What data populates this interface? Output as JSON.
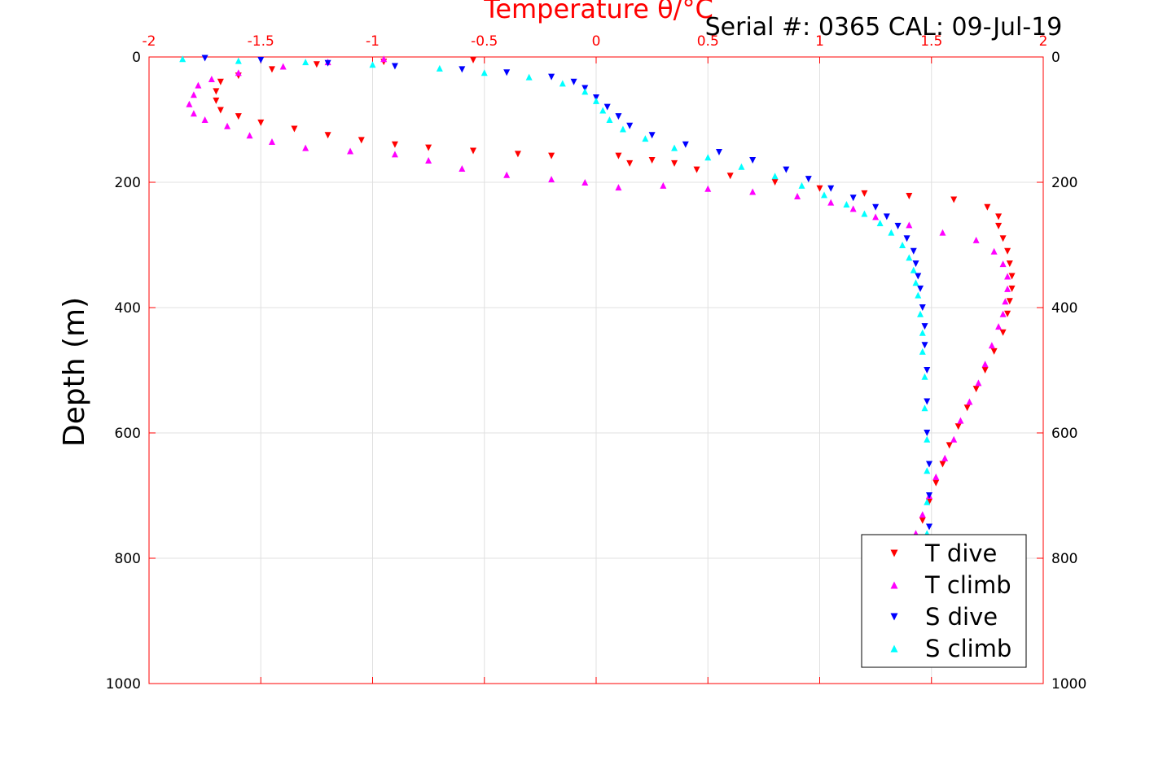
{
  "chart_data": {
    "type": "scatter",
    "title": "Temperature θ/°C",
    "subtitle": "Serial #: 0365  CAL: 09-Jul-19",
    "xlabel": "Temperature θ/°C",
    "ylabel": "Depth (m)",
    "xlim": [
      -2,
      2
    ],
    "ylim": [
      0,
      1000
    ],
    "y_reversed": true,
    "x_axis_position": "top",
    "grid": true,
    "legend_position": "bottom-right",
    "x_ticks": [
      "-2",
      "-1.5",
      "-1",
      "-0.5",
      "0",
      "0.5",
      "1",
      "1.5",
      "2"
    ],
    "y_ticks": [
      "0",
      "200",
      "400",
      "600",
      "800",
      "1000"
    ],
    "colors": {
      "axis": "#ff0000",
      "grid": "#e0e0e0",
      "t_dive": "#ff0000",
      "t_climb": "#ff00ff",
      "s_dive": "#0000ff",
      "s_climb": "#00ffff"
    },
    "series": [
      {
        "name": "T dive",
        "color": "#ff0000",
        "marker": "triangle-down",
        "points": [
          [
            -0.55,
            5
          ],
          [
            -0.95,
            8
          ],
          [
            -1.25,
            12
          ],
          [
            -1.45,
            20
          ],
          [
            -1.6,
            30
          ],
          [
            -1.68,
            40
          ],
          [
            -1.7,
            55
          ],
          [
            -1.7,
            70
          ],
          [
            -1.68,
            85
          ],
          [
            -1.6,
            95
          ],
          [
            -1.5,
            105
          ],
          [
            -1.35,
            115
          ],
          [
            -1.2,
            125
          ],
          [
            -1.05,
            133
          ],
          [
            -0.9,
            140
          ],
          [
            -0.75,
            145
          ],
          [
            -0.55,
            150
          ],
          [
            -0.35,
            155
          ],
          [
            -0.2,
            158
          ],
          [
            0.1,
            158
          ],
          [
            0.15,
            170
          ],
          [
            0.25,
            165
          ],
          [
            0.35,
            170
          ],
          [
            0.45,
            180
          ],
          [
            0.6,
            190
          ],
          [
            0.8,
            200
          ],
          [
            1.0,
            210
          ],
          [
            1.2,
            218
          ],
          [
            1.4,
            222
          ],
          [
            1.6,
            228
          ],
          [
            1.75,
            240
          ],
          [
            1.8,
            255
          ],
          [
            1.8,
            270
          ],
          [
            1.82,
            290
          ],
          [
            1.84,
            310
          ],
          [
            1.85,
            330
          ],
          [
            1.86,
            350
          ],
          [
            1.86,
            370
          ],
          [
            1.85,
            390
          ],
          [
            1.84,
            410
          ],
          [
            1.82,
            440
          ],
          [
            1.78,
            470
          ],
          [
            1.74,
            500
          ],
          [
            1.7,
            530
          ],
          [
            1.66,
            560
          ],
          [
            1.62,
            590
          ],
          [
            1.58,
            620
          ],
          [
            1.55,
            650
          ],
          [
            1.52,
            680
          ],
          [
            1.49,
            710
          ],
          [
            1.46,
            740
          ],
          [
            1.43,
            770
          ]
        ]
      },
      {
        "name": "T climb",
        "color": "#ff00ff",
        "marker": "triangle-up",
        "points": [
          [
            -0.95,
            3
          ],
          [
            -1.2,
            8
          ],
          [
            -1.4,
            15
          ],
          [
            -1.6,
            25
          ],
          [
            -1.72,
            35
          ],
          [
            -1.78,
            45
          ],
          [
            -1.8,
            60
          ],
          [
            -1.82,
            75
          ],
          [
            -1.8,
            90
          ],
          [
            -1.75,
            100
          ],
          [
            -1.65,
            110
          ],
          [
            -1.55,
            125
          ],
          [
            -1.45,
            135
          ],
          [
            -1.3,
            145
          ],
          [
            -1.1,
            150
          ],
          [
            -0.9,
            155
          ],
          [
            -0.75,
            165
          ],
          [
            -0.6,
            178
          ],
          [
            -0.4,
            188
          ],
          [
            -0.2,
            195
          ],
          [
            -0.05,
            200
          ],
          [
            0.1,
            208
          ],
          [
            0.3,
            205
          ],
          [
            0.5,
            210
          ],
          [
            0.7,
            215
          ],
          [
            0.9,
            222
          ],
          [
            1.05,
            232
          ],
          [
            1.15,
            242
          ],
          [
            1.25,
            255
          ],
          [
            1.4,
            268
          ],
          [
            1.55,
            280
          ],
          [
            1.7,
            292
          ],
          [
            1.78,
            310
          ],
          [
            1.82,
            330
          ],
          [
            1.84,
            350
          ],
          [
            1.84,
            370
          ],
          [
            1.83,
            390
          ],
          [
            1.82,
            410
          ],
          [
            1.8,
            430
          ],
          [
            1.77,
            460
          ],
          [
            1.74,
            490
          ],
          [
            1.71,
            520
          ],
          [
            1.67,
            550
          ],
          [
            1.63,
            580
          ],
          [
            1.6,
            610
          ],
          [
            1.56,
            640
          ],
          [
            1.52,
            670
          ],
          [
            1.49,
            700
          ],
          [
            1.46,
            730
          ],
          [
            1.43,
            760
          ],
          [
            1.41,
            775
          ]
        ]
      },
      {
        "name": "S dive",
        "color": "#0000ff",
        "marker": "triangle-down",
        "points": [
          [
            -1.75,
            2
          ],
          [
            -1.5,
            5
          ],
          [
            -1.2,
            10
          ],
          [
            -0.9,
            15
          ],
          [
            -0.6,
            20
          ],
          [
            -0.4,
            25
          ],
          [
            -0.2,
            32
          ],
          [
            -0.1,
            40
          ],
          [
            -0.05,
            50
          ],
          [
            0.0,
            65
          ],
          [
            0.05,
            80
          ],
          [
            0.1,
            95
          ],
          [
            0.15,
            110
          ],
          [
            0.25,
            125
          ],
          [
            0.4,
            140
          ],
          [
            0.55,
            152
          ],
          [
            0.7,
            165
          ],
          [
            0.85,
            180
          ],
          [
            0.95,
            195
          ],
          [
            1.05,
            210
          ],
          [
            1.15,
            225
          ],
          [
            1.25,
            240
          ],
          [
            1.3,
            255
          ],
          [
            1.35,
            270
          ],
          [
            1.39,
            290
          ],
          [
            1.42,
            310
          ],
          [
            1.43,
            330
          ],
          [
            1.44,
            350
          ],
          [
            1.45,
            370
          ],
          [
            1.46,
            400
          ],
          [
            1.47,
            430
          ],
          [
            1.47,
            460
          ],
          [
            1.48,
            500
          ],
          [
            1.48,
            550
          ],
          [
            1.48,
            600
          ],
          [
            1.49,
            650
          ],
          [
            1.49,
            700
          ],
          [
            1.49,
            750
          ],
          [
            1.49,
            775
          ]
        ]
      },
      {
        "name": "S climb",
        "color": "#00ffff",
        "marker": "triangle-up",
        "points": [
          [
            -1.85,
            3
          ],
          [
            -1.6,
            6
          ],
          [
            -1.3,
            8
          ],
          [
            -1.0,
            12
          ],
          [
            -0.7,
            18
          ],
          [
            -0.5,
            25
          ],
          [
            -0.3,
            32
          ],
          [
            -0.15,
            42
          ],
          [
            -0.05,
            55
          ],
          [
            0.0,
            70
          ],
          [
            0.03,
            85
          ],
          [
            0.06,
            100
          ],
          [
            0.12,
            115
          ],
          [
            0.22,
            130
          ],
          [
            0.35,
            145
          ],
          [
            0.5,
            160
          ],
          [
            0.65,
            175
          ],
          [
            0.8,
            190
          ],
          [
            0.92,
            205
          ],
          [
            1.02,
            220
          ],
          [
            1.12,
            235
          ],
          [
            1.2,
            250
          ],
          [
            1.27,
            265
          ],
          [
            1.32,
            280
          ],
          [
            1.37,
            300
          ],
          [
            1.4,
            320
          ],
          [
            1.42,
            340
          ],
          [
            1.43,
            360
          ],
          [
            1.44,
            380
          ],
          [
            1.45,
            410
          ],
          [
            1.46,
            440
          ],
          [
            1.46,
            470
          ],
          [
            1.47,
            510
          ],
          [
            1.47,
            560
          ],
          [
            1.48,
            610
          ],
          [
            1.48,
            660
          ],
          [
            1.48,
            710
          ],
          [
            1.48,
            760
          ],
          [
            1.48,
            775
          ]
        ]
      }
    ]
  }
}
